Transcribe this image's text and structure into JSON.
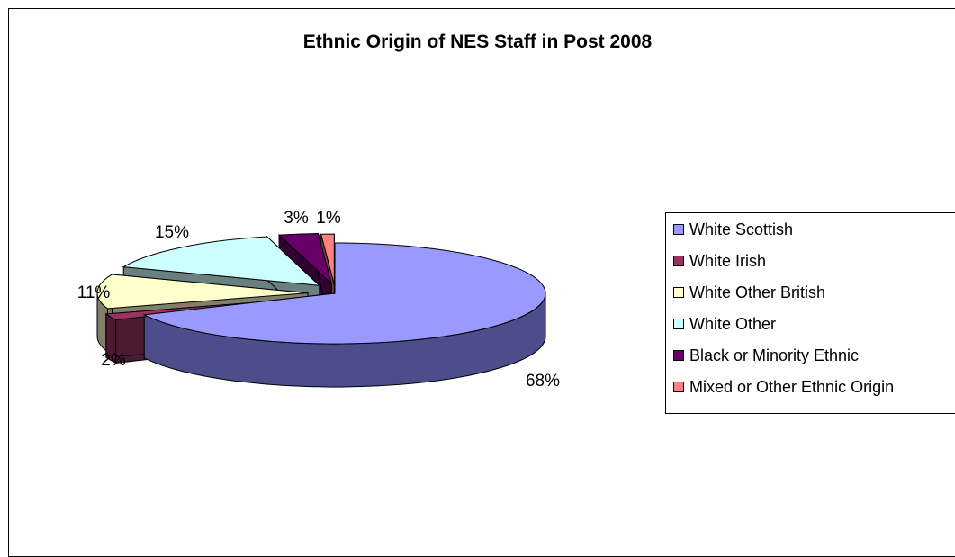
{
  "chart_data": {
    "type": "pie",
    "style": "3d-exploded",
    "title": "Ethnic Origin of NES Staff in Post 2008",
    "legend_position": "right",
    "slices": [
      {
        "name": "White Scottish",
        "value": 68,
        "label": "68%",
        "color": "#9999FF",
        "side_color": "#4D4D8C"
      },
      {
        "name": "White Irish",
        "value": 2,
        "label": "2%",
        "color": "#993366",
        "side_color": "#4D1A33"
      },
      {
        "name": "White Other British",
        "value": 11,
        "label": "11%",
        "color": "#FFFFCC",
        "side_color": "#80806A"
      },
      {
        "name": "White Other",
        "value": 15,
        "label": "15%",
        "color": "#CCFFFF",
        "side_color": "#6A8080"
      },
      {
        "name": "Black or Minority Ethnic",
        "value": 3,
        "label": "3%",
        "color": "#660066",
        "side_color": "#330033"
      },
      {
        "name": "Mixed or Other Ethnic Origin",
        "value": 1,
        "label": "1%",
        "color": "#FF8080",
        "side_color": "#804040"
      }
    ]
  }
}
